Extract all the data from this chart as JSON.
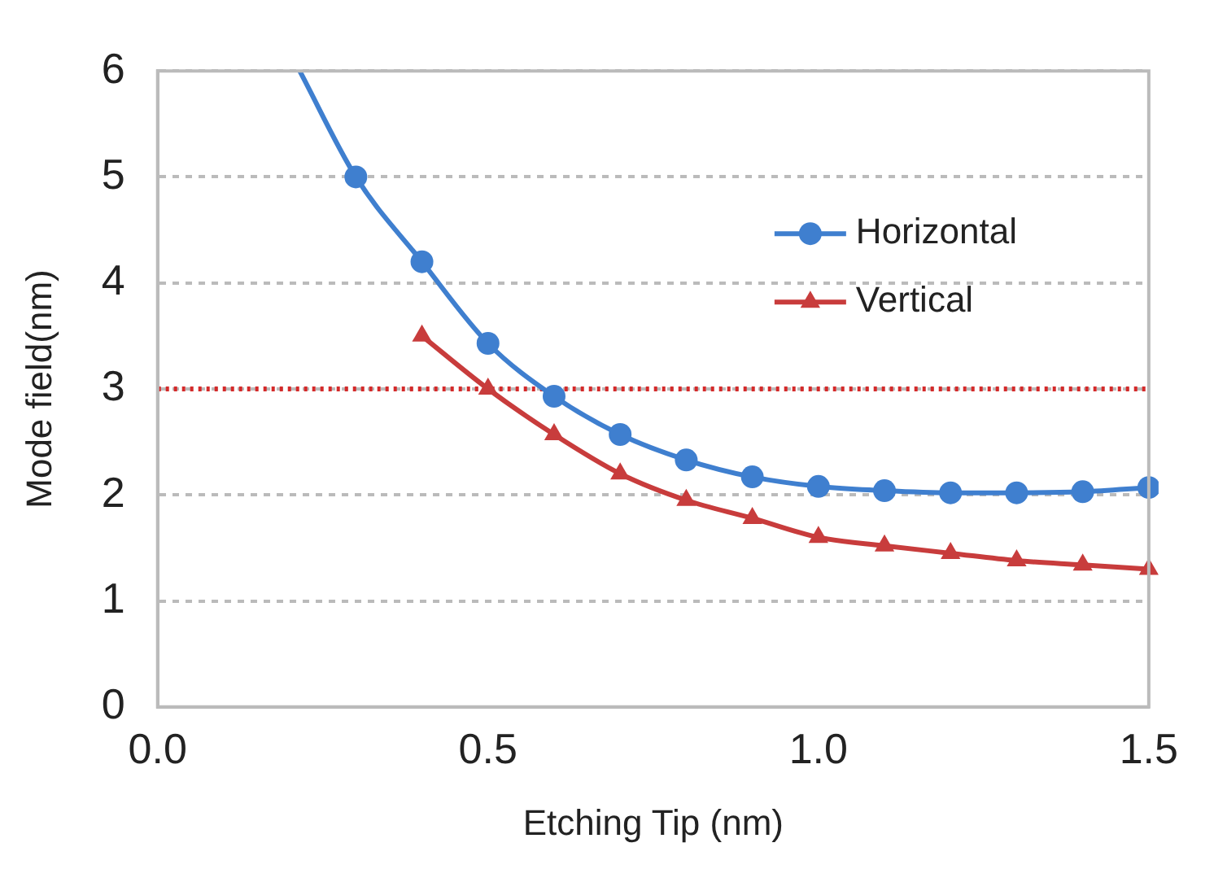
{
  "chart_data": {
    "type": "line",
    "xlabel": "Etching Tip (nm)",
    "ylabel": "Mode field(nm)",
    "xlim": [
      0,
      1.5
    ],
    "xticks": [
      {
        "value": 0,
        "label": "0.0"
      },
      {
        "value": 0.5,
        "label": "0.5"
      },
      {
        "value": 1,
        "label": "1.0"
      },
      {
        "value": 1.5,
        "label": "1.5"
      }
    ],
    "ylim": [
      0,
      6
    ],
    "yticks": [
      0,
      1,
      2,
      3,
      4,
      5,
      6
    ],
    "grid": "y",
    "legend": "top right",
    "line_style": "solid",
    "ref_lines": [
      {
        "axis": "y",
        "value": 3,
        "color": "#d42a2a",
        "line_style": "dotted"
      }
    ],
    "series": [
      {
        "name": "Horizontal",
        "color": "#3f7fcf",
        "marker": "circle",
        "x": [
          0.215,
          0.3,
          0.4,
          0.5,
          0.6,
          0.7,
          0.8,
          0.9,
          1.0,
          1.1,
          1.2,
          1.3,
          1.4,
          1.5
        ],
        "values": [
          6,
          5.0,
          4.2,
          3.43,
          2.93,
          2.57,
          2.33,
          2.17,
          2.08,
          2.04,
          2.02,
          2.02,
          2.03,
          2.07
        ]
      },
      {
        "name": "Vertical",
        "color": "#c83c3c",
        "marker": "triangle",
        "x": [
          0.4,
          0.5,
          0.6,
          0.7,
          0.8,
          0.9,
          1.0,
          1.1,
          1.2,
          1.3,
          1.4,
          1.5
        ],
        "values": [
          3.5,
          3.0,
          2.57,
          2.2,
          1.95,
          1.78,
          1.6,
          1.52,
          1.45,
          1.38,
          1.34,
          1.3
        ]
      }
    ]
  }
}
